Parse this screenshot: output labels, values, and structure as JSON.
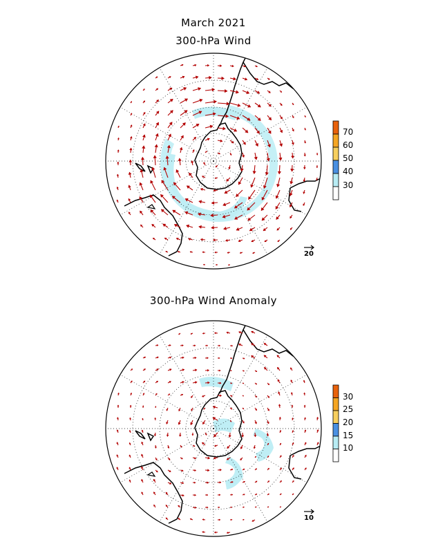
{
  "header": {
    "date": "March 2021",
    "top_title": "300-hPa Wind",
    "bottom_title": "300-hPa Wind Anomaly"
  },
  "top_panel": {
    "colorbar_labels": [
      "30",
      "40",
      "50",
      "60",
      "70"
    ],
    "colorbar_colors": [
      "#ffffff",
      "#b8ecf4",
      "#4a90e2",
      "#f7cf5e",
      "#f5a623",
      "#e8620c"
    ],
    "reference_vector": "20",
    "shading_color": "#bfeef5"
  },
  "bottom_panel": {
    "colorbar_labels": [
      "10",
      "15",
      "20",
      "25",
      "30"
    ],
    "colorbar_colors": [
      "#ffffff",
      "#b8ecf4",
      "#4a90e2",
      "#f7cf5e",
      "#f5a623",
      "#e8620c"
    ],
    "reference_vector": "10",
    "shading_color": "#bfeef5"
  },
  "style": {
    "vector_color": "#b30000",
    "grid_color": "#000000"
  }
}
